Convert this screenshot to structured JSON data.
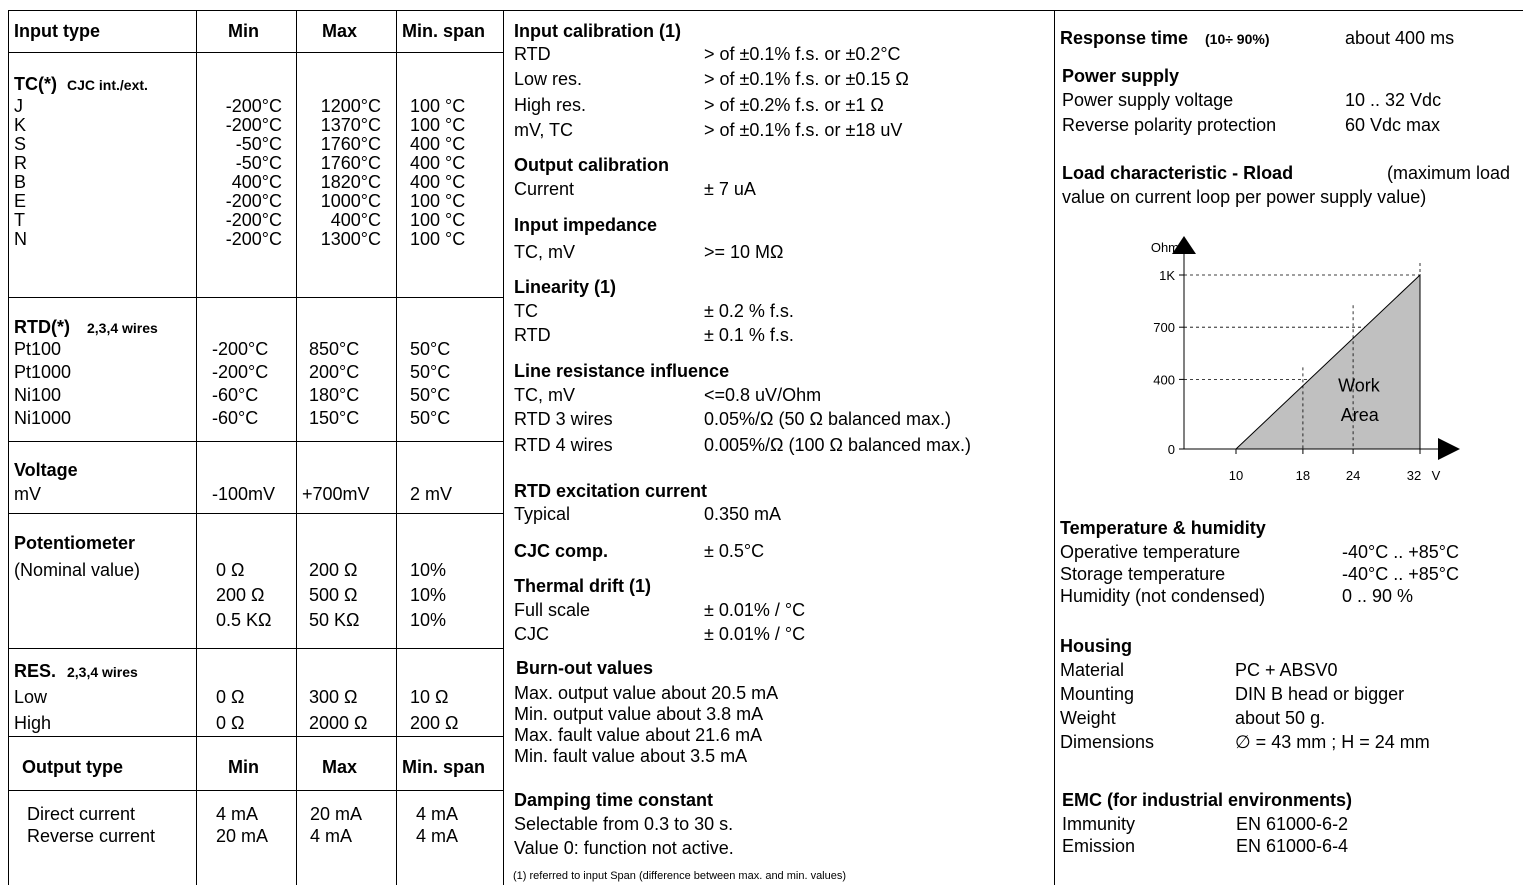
{
  "table": {
    "headers": [
      "Input type",
      "Min",
      "Max",
      "Min. span"
    ],
    "tc": {
      "title": "TC(*)",
      "note": "CJC int./ext.",
      "rows": [
        [
          "J",
          "-200°C",
          "1200°C",
          "100 °C"
        ],
        [
          "K",
          "-200°C",
          "1370°C",
          "100 °C"
        ],
        [
          "S",
          "-50°C",
          "1760°C",
          "400 °C"
        ],
        [
          "R",
          "-50°C",
          "1760°C",
          "400 °C"
        ],
        [
          "B",
          "400°C",
          "1820°C",
          "400 °C"
        ],
        [
          "E",
          "-200°C",
          "1000°C",
          "100 °C"
        ],
        [
          "T",
          "-200°C",
          "400°C",
          "100 °C"
        ],
        [
          "N",
          "-200°C",
          "1300°C",
          "100 °C"
        ]
      ]
    },
    "rtd": {
      "title": "RTD(*)",
      "note": "2,3,4 wires",
      "rows": [
        [
          "Pt100",
          "-200°C",
          "850°C",
          "50°C"
        ],
        [
          "Pt1000",
          "-200°C",
          "200°C",
          "50°C"
        ],
        [
          "Ni100",
          "-60°C",
          "180°C",
          "50°C"
        ],
        [
          "Ni1000",
          "-60°C",
          "150°C",
          "50°C"
        ]
      ]
    },
    "voltage": {
      "title": "Voltage",
      "rows": [
        [
          "mV",
          "-100mV",
          "+700mV",
          "2 mV"
        ]
      ]
    },
    "pot": {
      "title": "Potentiometer",
      "label": "(Nominal value)",
      "rows": [
        [
          "0 Ω",
          "200 Ω",
          "10%"
        ],
        [
          "200 Ω",
          "500 Ω",
          "10%"
        ],
        [
          "0.5 KΩ",
          "50 KΩ",
          "10%"
        ]
      ]
    },
    "res": {
      "title": "RES.",
      "note": "2,3,4 wires",
      "rows": [
        [
          "Low",
          "0 Ω",
          "300 Ω",
          "10 Ω"
        ],
        [
          "High",
          "0 Ω",
          "2000 Ω",
          "200 Ω"
        ]
      ]
    },
    "output_headers": [
      "Output type",
      "Min",
      "Max",
      "Min. span"
    ],
    "output_rows": [
      [
        "Direct current",
        "4 mA",
        "20 mA",
        "4 mA"
      ],
      [
        "Reverse current",
        "20 mA",
        "4 mA",
        "4 mA"
      ]
    ]
  },
  "middle": {
    "input_cal": {
      "title": "Input calibration (1)",
      "rows": [
        [
          "RTD",
          "> of ±0.1% f.s. or ±0.2°C"
        ],
        [
          "Low  res.",
          "> of  ±0.1% f.s. or ±0.15 Ω"
        ],
        [
          "High res.",
          "> of  ±0.2% f.s. or ±1 Ω"
        ],
        [
          "mV, TC",
          "> of  ±0.1% f.s. or ±18 uV"
        ]
      ]
    },
    "output_cal": {
      "title": "Output calibration",
      "rows": [
        [
          "Current",
          "± 7 uA"
        ]
      ]
    },
    "impedance": {
      "title": "Input impedance",
      "rows": [
        [
          "TC, mV",
          ">= 10 MΩ"
        ]
      ]
    },
    "linearity": {
      "title": "Linearity (1)",
      "rows": [
        [
          "TC",
          "± 0.2 % f.s."
        ],
        [
          "RTD",
          "± 0.1 % f.s."
        ]
      ]
    },
    "line_res": {
      "title": "Line resistance influence",
      "rows": [
        [
          "TC, mV",
          "<=0.8 uV/Ohm"
        ],
        [
          "RTD 3 wires",
          "0.05%/Ω (50 Ω  balanced max.)"
        ],
        [
          "RTD 4 wires",
          "0.005%/Ω (100 Ω balanced max.)"
        ]
      ]
    },
    "excitation": {
      "title": "RTD excitation current",
      "rows": [
        [
          "Typical",
          "0.350 mA"
        ]
      ]
    },
    "cjc": {
      "label": "CJC comp.",
      "value": "± 0.5°C"
    },
    "drift": {
      "title": "Thermal drift (1)",
      "rows": [
        [
          "Full scale",
          "± 0.01% / °C"
        ],
        [
          "CJC",
          "± 0.01% / °C"
        ]
      ]
    },
    "burnout": {
      "title": "Burn-out values",
      "lines": [
        "Max. output value about 20.5 mA",
        "Min. output value about 3.8 mA",
        "Max. fault value about 21.6 mA",
        "Min. fault value about 3.5 mA"
      ]
    },
    "damping": {
      "title": "Damping time constant",
      "lines": [
        "Selectable from 0.3 to 30 s.",
        "Value 0: function not active."
      ]
    },
    "footnote": "(1) referred to input Span (difference between max. and min. values)"
  },
  "right": {
    "response": {
      "title": "Response time",
      "note": "(10÷ 90%)",
      "value": "about 400 ms"
    },
    "power": {
      "title": "Power supply",
      "rows": [
        [
          "Power supply voltage",
          "10 .. 32 Vdc"
        ],
        [
          "Reverse polarity protection",
          "60 Vdc max"
        ]
      ]
    },
    "load": {
      "title": "Load  characteristic  -  Rload",
      "desc1": "(maximum  load",
      "desc2": "value on current loop per power supply value)"
    },
    "temp": {
      "title": "Temperature & humidity",
      "rows": [
        [
          "Operative temperature",
          "-40°C .. +85°C"
        ],
        [
          "Storage temperature",
          "-40°C .. +85°C"
        ],
        [
          "Humidity (not condensed)",
          "0 .. 90 %"
        ]
      ]
    },
    "housing": {
      "title": "Housing",
      "rows": [
        [
          "Material",
          "PC + ABSV0"
        ],
        [
          "Mounting",
          "DIN B head or bigger"
        ],
        [
          "Weight",
          "about 50 g."
        ],
        [
          "Dimensions",
          "∅ = 43 mm ; H = 24 mm"
        ]
      ]
    },
    "emc": {
      "title": "EMC (for industrial environments)",
      "rows": [
        [
          "Immunity",
          "EN 61000-6-2"
        ],
        [
          "Emission",
          "EN 61000-6-4"
        ]
      ]
    }
  },
  "chart_data": {
    "type": "area",
    "ylabel": "Ohm",
    "xlabel": "V",
    "x_ticks": [
      10,
      18,
      24,
      32
    ],
    "y_ticks": [
      {
        "v": 0,
        "label": "0"
      },
      {
        "v": 400,
        "label": "400"
      },
      {
        "v": 700,
        "label": "700"
      },
      {
        "v": 1000,
        "label": "1K"
      }
    ],
    "xlim": [
      10,
      32
    ],
    "ylim": [
      0,
      1000
    ],
    "series": [
      {
        "x": [
          10,
          32
        ],
        "y": [
          0,
          1000
        ]
      }
    ],
    "area_label": [
      "Work",
      "Area"
    ],
    "fill": "#c0c0c0"
  }
}
